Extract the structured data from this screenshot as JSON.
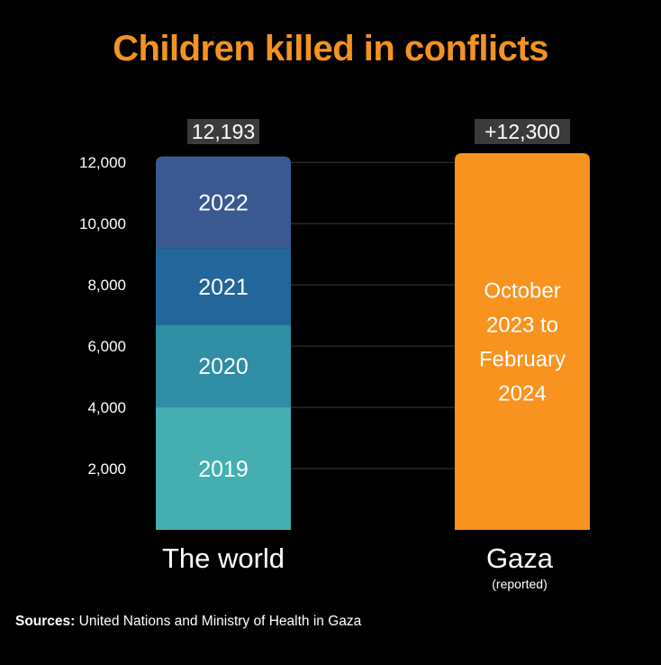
{
  "title": "Children killed in conflicts",
  "colors": {
    "background": "#000000",
    "title": "#f39322",
    "grid": "#3a3a3a",
    "text": "#ffffff",
    "total_badge": "#3b3b3b",
    "gaza": "#f7931e",
    "y2019": "#45aeb0",
    "y2020": "#2f8ea4",
    "y2021": "#23679a",
    "y2022": "#3b5991"
  },
  "source": {
    "lead": "Sources:",
    "text": "United Nations and  Ministry of Health in Gaza"
  },
  "chart_data": {
    "type": "bar",
    "stacked": true,
    "title": "Children killed in conflicts",
    "xlabel": "",
    "ylabel": "",
    "ylim": [
      0,
      12300
    ],
    "yticks": [
      2000,
      4000,
      6000,
      8000,
      10000,
      12000
    ],
    "ytick_labels": [
      "2,000",
      "4,000",
      "6,000",
      "8,000",
      "10,000",
      "12,000"
    ],
    "grid": true,
    "categories": [
      "The world",
      "Gaza"
    ],
    "category_sublabels": [
      "",
      "(reported)"
    ],
    "totals": [
      12193,
      12300
    ],
    "total_labels": [
      "12,193",
      "+12,300"
    ],
    "bars": [
      {
        "category": "The world",
        "segments": [
          {
            "label": "2019",
            "value": 4000,
            "color_key": "y2019"
          },
          {
            "label": "2020",
            "value": 2700,
            "color_key": "y2020"
          },
          {
            "label": "2021",
            "value": 2500,
            "color_key": "y2021"
          },
          {
            "label": "2022",
            "value": 2993,
            "color_key": "y2022"
          }
        ]
      },
      {
        "category": "Gaza",
        "segments": [
          {
            "label": "October\n2023 to\nFebruary\n2024",
            "value": 12300,
            "color_key": "gaza"
          }
        ]
      }
    ]
  }
}
